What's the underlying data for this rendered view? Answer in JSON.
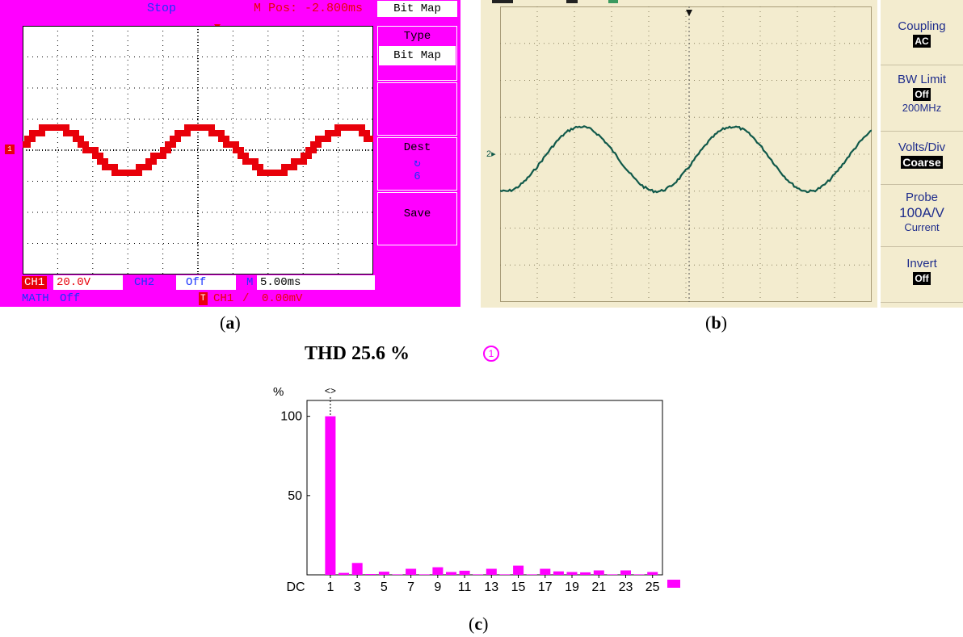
{
  "panel_a": {
    "run_status": "Stop",
    "m_pos": "M Pos: -2.800ms",
    "menu_title": "Bit Map",
    "menu": {
      "type_label": "Type",
      "type_value": "Bit Map",
      "dest_label": "Dest",
      "dest_glyph": "↻",
      "dest_value": "6",
      "save_label": "Save"
    },
    "status": {
      "ch1_label": "CH1",
      "ch1_scale": "20.0V",
      "ch2_label": "CH2",
      "ch2_value": "Off",
      "time_label": "M",
      "time_scale": "5.00ms",
      "math_label": "MATH",
      "math_value": "Off",
      "trigger_icon": "T",
      "trigger_source": "CH1",
      "trigger_slope": "/",
      "trigger_level": "0.00mV"
    },
    "ch1_marker": "1",
    "colors": {
      "background": "#ff00ff",
      "trace": "#e8000a",
      "accent_blue": "#1a33ff"
    }
  },
  "panel_b": {
    "channel_marker": "2",
    "sidebar": [
      {
        "name": "Coupling",
        "value": "AC",
        "value_style": "box"
      },
      {
        "name": "BW Limit",
        "value": "Off",
        "value_style": "box",
        "extra": "200MHz"
      },
      {
        "name": "Volts/Div",
        "value": "Coarse",
        "value_style": "box"
      },
      {
        "name": "Probe",
        "value": "100A/V",
        "value_style": "big",
        "extra": "Current"
      },
      {
        "name": "Invert",
        "value": "Off",
        "value_style": "box"
      }
    ],
    "colors": {
      "background": "#f3eccf",
      "trace": "#10594a",
      "label": "#1f2d8c"
    }
  },
  "captions": {
    "a": "a",
    "b": "b",
    "c": "c"
  },
  "panel_c": {
    "thd_label": "THD 25.6 %",
    "channel_marker": "1",
    "chart_data": {
      "type": "bar",
      "ylabel": "%",
      "ylim": [
        0,
        110
      ],
      "yticks": [
        50,
        100
      ],
      "cursor_label": "<>",
      "categories": [
        "DC",
        "1",
        "2",
        "3",
        "4",
        "5",
        "6",
        "7",
        "8",
        "9",
        "10",
        "11",
        "12",
        "13",
        "14",
        "15",
        "16",
        "17",
        "18",
        "19",
        "20",
        "21",
        "22",
        "23",
        "24",
        "25"
      ],
      "xtick_labels": [
        "DC",
        "1",
        "3",
        "5",
        "7",
        "9",
        "11",
        "13",
        "15",
        "17",
        "19",
        "21",
        "23",
        "25"
      ],
      "values": [
        0,
        100,
        1.2,
        7.5,
        0.5,
        2.0,
        0.3,
        3.8,
        0.3,
        4.8,
        1.8,
        2.6,
        0.3,
        3.8,
        0.3,
        5.8,
        0.3,
        3.8,
        2.2,
        1.8,
        1.6,
        2.8,
        0.3,
        2.8,
        0.3,
        1.8
      ],
      "bar_color": "#ff00ff"
    }
  }
}
